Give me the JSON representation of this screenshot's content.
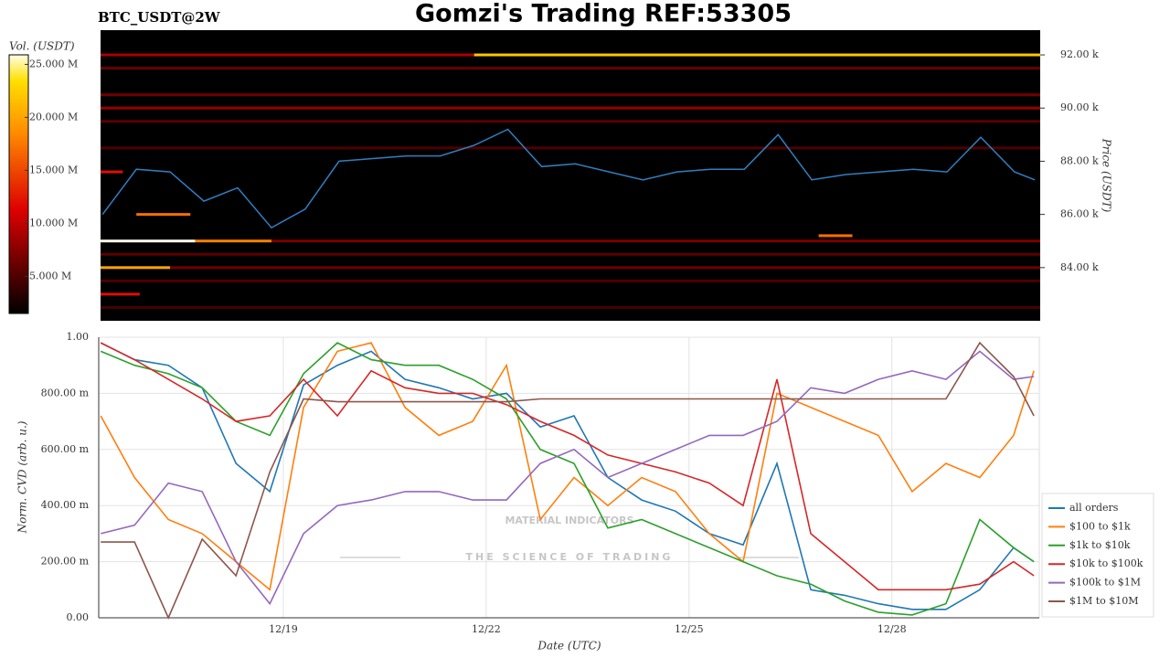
{
  "title": "Gomzi's Trading REF:53305",
  "symbol": "BTC_USDT@2W",
  "watermark": {
    "name": "MATERIAL INDICATORS",
    "tagline": "THE SCIENCE OF TRADING"
  },
  "chart_data": [
    {
      "type": "heatmap",
      "y_label": "Price (USDT)",
      "xlim": [
        16.27,
        30.18
      ],
      "ylim": [
        82000,
        92930
      ],
      "yticks": [
        {
          "value": 84000,
          "label": "84.00 k"
        },
        {
          "value": 86000,
          "label": "86.00 k"
        },
        {
          "value": 88000,
          "label": "88.00 k"
        },
        {
          "value": 90000,
          "label": "90.00 k"
        },
        {
          "value": 92000,
          "label": "92.00 k"
        }
      ],
      "colorbar": {
        "label": "Vol. (USDT)",
        "lim": [
          1500000,
          25900000
        ],
        "ticks": [
          {
            "value": 5000000,
            "label": "5.000 M"
          },
          {
            "value": 10000000,
            "label": "10.000 M"
          },
          {
            "value": 15000000,
            "label": "15.000 M"
          },
          {
            "value": 20000000,
            "label": "20.000 M"
          },
          {
            "value": 25000000,
            "label": "25.000 M"
          }
        ]
      },
      "levels": [
        {
          "price": 92000,
          "start": 16.27,
          "end": 21.8,
          "volume": 9000000
        },
        {
          "price": 92000,
          "start": 21.8,
          "end": 30.18,
          "volume": 22000000
        },
        {
          "price": 91500,
          "start": 16.27,
          "end": 30.18,
          "volume": 6000000
        },
        {
          "price": 90500,
          "start": 16.27,
          "end": 30.18,
          "volume": 6500000
        },
        {
          "price": 90000,
          "start": 16.27,
          "end": 30.18,
          "volume": 8000000
        },
        {
          "price": 89500,
          "start": 16.27,
          "end": 30.18,
          "volume": 5500000
        },
        {
          "price": 88500,
          "start": 16.27,
          "end": 30.18,
          "volume": 5000000
        },
        {
          "price": 87600,
          "start": 16.27,
          "end": 16.6,
          "volume": 12000000
        },
        {
          "price": 86000,
          "start": 16.8,
          "end": 17.6,
          "volume": 17000000
        },
        {
          "price": 85200,
          "start": 26.9,
          "end": 27.4,
          "volume": 17000000
        },
        {
          "price": 85000,
          "start": 16.27,
          "end": 17.67,
          "volume": 25900000
        },
        {
          "price": 85000,
          "start": 17.67,
          "end": 18.8,
          "volume": 18000000
        },
        {
          "price": 85000,
          "start": 18.8,
          "end": 30.18,
          "volume": 7000000
        },
        {
          "price": 84500,
          "start": 16.27,
          "end": 30.18,
          "volume": 5500000
        },
        {
          "price": 84000,
          "start": 16.27,
          "end": 17.3,
          "volume": 20000000
        },
        {
          "price": 84000,
          "start": 17.3,
          "end": 30.18,
          "volume": 6500000
        },
        {
          "price": 83500,
          "start": 16.27,
          "end": 30.18,
          "volume": 5000000
        },
        {
          "price": 83000,
          "start": 16.27,
          "end": 16.85,
          "volume": 12000000
        },
        {
          "price": 82500,
          "start": 16.27,
          "end": 30.18,
          "volume": 4500000
        }
      ],
      "line_color": "#2f7fc1",
      "x": [
        16.3,
        16.8,
        17.3,
        17.8,
        18.3,
        18.8,
        19.3,
        19.8,
        20.3,
        20.8,
        21.3,
        21.8,
        22.3,
        22.8,
        23.3,
        23.8,
        24.3,
        24.8,
        25.3,
        25.8,
        26.3,
        26.8,
        27.3,
        27.8,
        28.3,
        28.8,
        29.3,
        29.8,
        30.1
      ],
      "values": [
        86000,
        87700,
        87600,
        86500,
        87000,
        85500,
        86200,
        88000,
        88100,
        88200,
        88200,
        88600,
        89200,
        87800,
        87900,
        87600,
        87300,
        87600,
        87700,
        87700,
        89000,
        87300,
        87500,
        87600,
        87700,
        87600,
        88900,
        87600,
        87300
      ]
    },
    {
      "type": "line",
      "x_label": "Date (UTC)",
      "y_label": "Norm. CVD (arb. u.)",
      "xlim": [
        16.27,
        30.18
      ],
      "ylim": [
        0,
        1
      ],
      "xticks": [
        {
          "value": 19,
          "label": "12/19"
        },
        {
          "value": 22,
          "label": "12/22"
        },
        {
          "value": 25,
          "label": "12/25"
        },
        {
          "value": 28,
          "label": "12/28"
        }
      ],
      "yticks": [
        {
          "value": 0,
          "label": "0.00"
        },
        {
          "value": 0.2,
          "label": "200.00 m"
        },
        {
          "value": 0.4,
          "label": "400.00 m"
        },
        {
          "value": 0.6,
          "label": "600.00 m"
        },
        {
          "value": 0.8,
          "label": "800.00 m"
        },
        {
          "value": 1,
          "label": "1.00"
        }
      ],
      "grid": true,
      "x": [
        16.3,
        16.8,
        17.3,
        17.8,
        18.3,
        18.8,
        19.3,
        19.8,
        20.3,
        20.8,
        21.3,
        21.8,
        22.3,
        22.8,
        23.3,
        23.8,
        24.3,
        24.8,
        25.3,
        25.8,
        26.3,
        26.8,
        27.3,
        27.8,
        28.3,
        28.8,
        29.3,
        29.8,
        30.1
      ],
      "series": [
        {
          "name": "all orders",
          "color": "#1f77b4",
          "values": [
            0.98,
            0.92,
            0.9,
            0.82,
            0.55,
            0.45,
            0.83,
            0.9,
            0.95,
            0.85,
            0.82,
            0.78,
            0.8,
            0.68,
            0.72,
            0.5,
            0.42,
            0.38,
            0.3,
            0.26,
            0.55,
            0.1,
            0.08,
            0.05,
            0.03,
            0.03,
            0.1,
            0.25,
            0.2
          ]
        },
        {
          "name": "$100 to $1k",
          "color": "#ff7f0e",
          "values": [
            0.72,
            0.5,
            0.35,
            0.3,
            0.2,
            0.1,
            0.75,
            0.95,
            0.98,
            0.75,
            0.65,
            0.7,
            0.9,
            0.35,
            0.5,
            0.4,
            0.5,
            0.45,
            0.3,
            0.2,
            0.8,
            0.75,
            0.7,
            0.65,
            0.45,
            0.55,
            0.5,
            0.65,
            0.88
          ]
        },
        {
          "name": "$1k to $10k",
          "color": "#2ca02c",
          "values": [
            0.95,
            0.9,
            0.87,
            0.82,
            0.7,
            0.65,
            0.87,
            0.98,
            0.92,
            0.9,
            0.9,
            0.85,
            0.78,
            0.6,
            0.55,
            0.32,
            0.35,
            0.3,
            0.25,
            0.2,
            0.15,
            0.12,
            0.06,
            0.02,
            0.01,
            0.05,
            0.35,
            0.25,
            0.2
          ]
        },
        {
          "name": "$10k to $100k",
          "color": "#d62728",
          "values": [
            0.98,
            0.92,
            0.85,
            0.78,
            0.7,
            0.72,
            0.85,
            0.72,
            0.88,
            0.82,
            0.8,
            0.8,
            0.76,
            0.7,
            0.65,
            0.58,
            0.55,
            0.52,
            0.48,
            0.4,
            0.85,
            0.3,
            0.2,
            0.1,
            0.1,
            0.1,
            0.12,
            0.2,
            0.15
          ]
        },
        {
          "name": "$100k to $1M",
          "color": "#9467bd",
          "values": [
            0.3,
            0.33,
            0.48,
            0.45,
            0.2,
            0.05,
            0.3,
            0.4,
            0.42,
            0.45,
            0.45,
            0.42,
            0.42,
            0.55,
            0.6,
            0.5,
            0.55,
            0.6,
            0.65,
            0.65,
            0.7,
            0.82,
            0.8,
            0.85,
            0.88,
            0.85,
            0.95,
            0.85,
            0.86
          ]
        },
        {
          "name": "$1M to $10M",
          "color": "#8c564b",
          "values": [
            0.27,
            0.27,
            0,
            0.28,
            0.15,
            0.52,
            0.78,
            0.77,
            0.77,
            0.77,
            0.77,
            0.77,
            0.77,
            0.78,
            0.78,
            0.78,
            0.78,
            0.78,
            0.78,
            0.78,
            0.78,
            0.78,
            0.78,
            0.78,
            0.78,
            0.78,
            0.98,
            0.86,
            0.72
          ]
        }
      ]
    }
  ]
}
